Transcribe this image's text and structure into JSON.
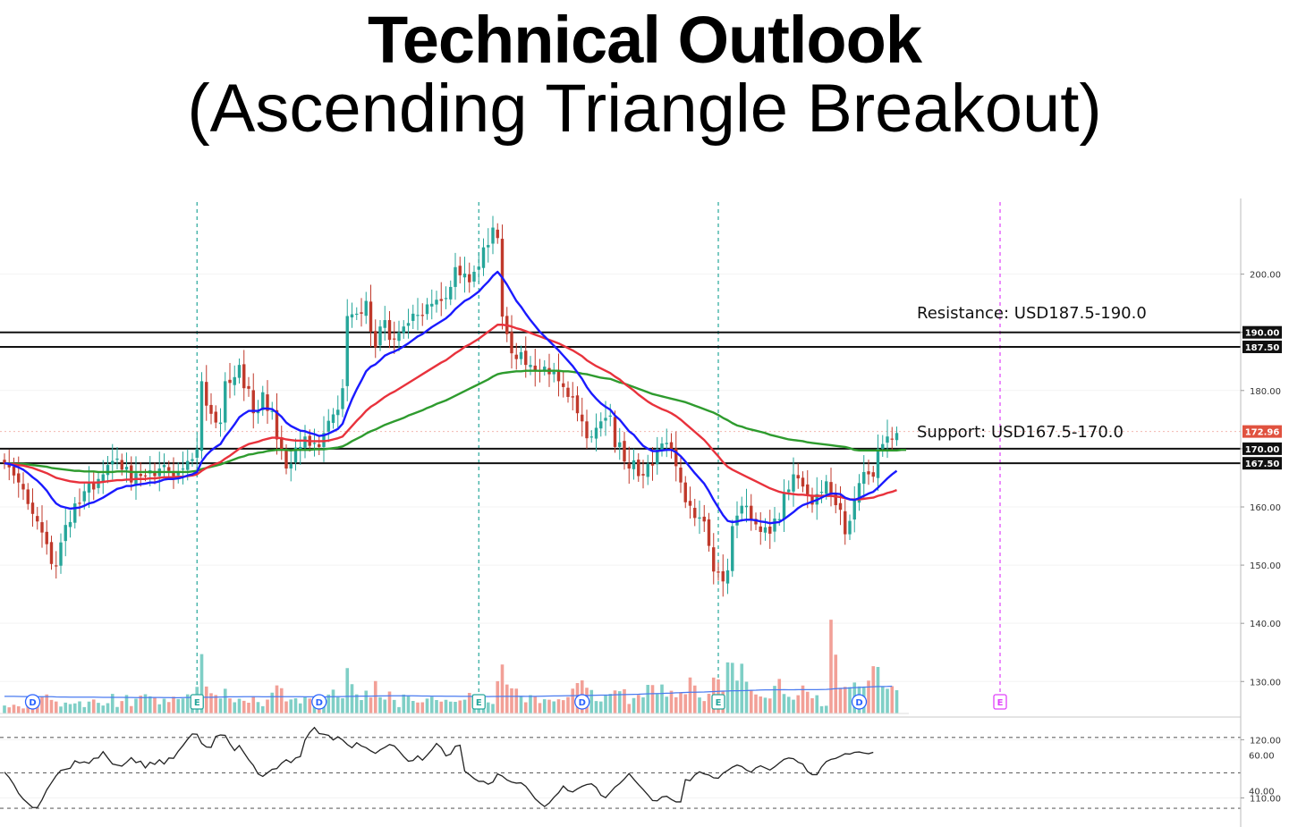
{
  "title": "Technical Outlook",
  "subtitle": "(Ascending Triangle Breakout)",
  "colors": {
    "up": "#26a69a",
    "down": "#c0392b",
    "ma_fast": "#1a1aff",
    "ma_mid": "#e8323c",
    "ma_slow": "#2e9b2e",
    "volume_ma": "#4a7bf0",
    "rsi": "#222222",
    "event_green": "#26a69a",
    "event_blue": "#2962ff",
    "event_magenta": "#e040fb",
    "last_price": "#e0523f"
  },
  "chart_data": {
    "type": "candlestick",
    "y_axis": {
      "ylim": [
        105,
        213
      ],
      "ticks": [
        110,
        120,
        130,
        140,
        150,
        160,
        170,
        180,
        190,
        200
      ],
      "tick_labels": [
        "110.00",
        "120.00",
        "130.00",
        "140.00",
        "150.00",
        "160.00",
        "170.00",
        "180.00",
        "190.00",
        "200.00"
      ]
    },
    "price_tags": [
      {
        "value": 190.0,
        "label": "190.00",
        "color": "#111111"
      },
      {
        "value": 187.5,
        "label": "187.50",
        "color": "#111111"
      },
      {
        "value": 172.96,
        "label": "172.96",
        "color": "#e0523f"
      },
      {
        "value": 170.0,
        "label": "170.00",
        "color": "#111111"
      },
      {
        "value": 167.5,
        "label": "167.50",
        "color": "#111111"
      }
    ],
    "horizontal_levels": [
      190.0,
      187.5,
      170.0,
      167.5
    ],
    "annotations": [
      {
        "text": "Resistance: USD187.5-190.0",
        "y": 193.3
      },
      {
        "text": "Support: USD167.5-170.0",
        "y": 172.9
      }
    ],
    "close": [
      167.5,
      166.8,
      165.4,
      164.2,
      163.0,
      160.5,
      158.8,
      157.5,
      155.6,
      153.6,
      150.2,
      149.9,
      153.9,
      156.9,
      157.4,
      160.6,
      160.6,
      162.7,
      164.1,
      163.0,
      164.8,
      165.6,
      167.2,
      167.9,
      168.3,
      166.4,
      166.9,
      164.2,
      165.8,
      165.3,
      165.4,
      166.3,
      165.3,
      166.6,
      167.2,
      166.2,
      165.3,
      166.1,
      166.6,
      167.9,
      168.2,
      170.0,
      181.6,
      177.4,
      176.0,
      174.5,
      174.5,
      181.6,
      181.3,
      182.3,
      184.4,
      180.4,
      180.3,
      176.1,
      176.4,
      179.7,
      176.5,
      176.5,
      171.6,
      169.9,
      166.6,
      167.4,
      170.2,
      170.3,
      172.1,
      170.5,
      171.0,
      170.3,
      172.7,
      174.8,
      175.9,
      176.7,
      180.4,
      192.8,
      193.1,
      193.2,
      193.2,
      195.4,
      190.1,
      187.4,
      191.0,
      192.1,
      188.7,
      188.9,
      190.0,
      191.0,
      191.6,
      193.2,
      193.0,
      192.9,
      194.8,
      194.9,
      195.6,
      195.4,
      195.9,
      197.8,
      201.2,
      199.8,
      200.1,
      198.6,
      200.4,
      201.3,
      204.6,
      205.0,
      208.0,
      206.2,
      192.7,
      189.7,
      186.4,
      185.4,
      186.6,
      184.4,
      184.4,
      183.3,
      183.2,
      184.1,
      182.8,
      183.2,
      181.6,
      180.6,
      178.9,
      178.8,
      176.1,
      174.7,
      171.8,
      172.1,
      173.6,
      174.7,
      175.3,
      175.7,
      170.3,
      171.1,
      167.8,
      166.6,
      168.0,
      165.3,
      165.4,
      167.4,
      167.1,
      170.0,
      170.9,
      171.0,
      169.7,
      167.0,
      164.2,
      160.8,
      160.2,
      158.1,
      158.2,
      157.5,
      153.3,
      148.9,
      148.7,
      147.2,
      149.1,
      156.7,
      158.5,
      160.2,
      160.2,
      157.7,
      157.0,
      155.7,
      156.5,
      155.4,
      158.0,
      157.9,
      162.3,
      163.0,
      165.6,
      164.9,
      163.5,
      162.0,
      160.4,
      162.2,
      162.6,
      164.4,
      162.3,
      160.3,
      159.5,
      155.3,
      157.6,
      161.1,
      164.1,
      166.0,
      165.6,
      165.2,
      170.0,
      170.8,
      172.1,
      171.6,
      172.7
    ],
    "ma_fast": [
      167.5,
      167.4,
      167.1,
      166.8,
      166.4,
      165.8,
      165.1,
      164.5,
      163.7,
      162.8,
      161.6,
      160.6,
      160.1,
      159.9,
      159.7,
      159.8,
      159.9,
      160.2,
      160.6,
      160.8,
      161.2,
      161.6,
      162.1,
      162.6,
      163.1,
      163.3,
      163.6,
      163.6,
      163.8,
      163.9,
      164.0,
      164.2,
      164.2,
      164.4,
      164.7,
      164.8,
      164.8,
      164.9,
      165.1,
      165.4,
      165.6,
      166.0,
      167.8,
      168.9,
      169.7,
      170.3,
      170.8,
      172.1,
      173.1,
      174.2,
      175.4,
      176.0,
      176.5,
      176.5,
      176.5,
      176.9,
      176.9,
      176.8,
      176.2,
      175.5,
      174.5,
      173.9,
      173.5,
      173.1,
      173.0,
      172.7,
      172.5,
      172.2,
      172.3,
      172.6,
      173.0,
      173.4,
      174.3,
      176.5,
      178.5,
      180.2,
      181.7,
      183.3,
      184.1,
      184.5,
      185.2,
      186.0,
      186.4,
      186.7,
      187.1,
      187.6,
      188.1,
      188.7,
      189.3,
      189.7,
      190.3,
      190.9,
      191.4,
      191.9,
      192.4,
      193.1,
      194.0,
      194.7,
      195.4,
      195.8,
      196.4,
      197.0,
      197.9,
      198.7,
      199.7,
      200.4,
      199.4,
      198.2,
      196.8,
      195.4,
      194.4,
      193.2,
      192.1,
      191.1,
      190.1,
      189.3,
      188.5,
      187.7,
      186.9,
      186.0,
      185.1,
      184.2,
      183.1,
      182.0,
      180.6,
      179.5,
      178.6,
      177.8,
      177.2,
      176.7,
      175.7,
      175.0,
      174.0,
      173.0,
      172.4,
      171.4,
      170.5,
      170.0,
      169.6,
      169.6,
      169.7,
      169.8,
      169.8,
      169.4,
      168.7,
      167.8,
      166.8,
      165.8,
      164.9,
      164.0,
      162.7,
      161.2,
      159.9,
      158.6,
      157.6,
      157.4,
      157.5,
      157.7,
      157.8,
      157.8,
      157.7,
      157.5,
      157.4,
      157.2,
      157.3,
      157.4,
      157.9,
      158.5,
      159.1,
      159.8,
      160.3,
      160.6,
      160.9,
      161.2,
      161.6,
      162.0,
      162.3,
      162.3,
      162.2,
      161.6,
      161.3,
      161.2,
      161.5,
      161.9,
      162.3,
      162.6,
      163.3,
      164.1,
      164.9,
      165.6,
      166.2
    ],
    "ma_mid": [
      167.5,
      167.4,
      167.3,
      167.2,
      167.1,
      166.9,
      166.7,
      166.4,
      166.1,
      165.8,
      165.4,
      165.0,
      164.8,
      164.6,
      164.4,
      164.3,
      164.2,
      164.2,
      164.2,
      164.2,
      164.2,
      164.3,
      164.4,
      164.5,
      164.6,
      164.6,
      164.7,
      164.7,
      164.8,
      164.8,
      164.8,
      164.9,
      164.9,
      165.0,
      165.1,
      165.1,
      165.1,
      165.2,
      165.2,
      165.3,
      165.4,
      165.6,
      166.2,
      166.7,
      167.1,
      167.4,
      167.7,
      168.3,
      168.8,
      169.4,
      170.0,
      170.4,
      170.8,
      171.0,
      171.2,
      171.5,
      171.7,
      171.9,
      171.9,
      171.8,
      171.6,
      171.5,
      171.4,
      171.4,
      171.4,
      171.3,
      171.3,
      171.3,
      171.3,
      171.4,
      171.6,
      171.8,
      172.1,
      173.0,
      173.9,
      174.8,
      175.6,
      176.5,
      177.2,
      177.7,
      178.3,
      178.9,
      179.4,
      179.8,
      180.3,
      180.8,
      181.3,
      181.8,
      182.3,
      182.8,
      183.3,
      183.8,
      184.3,
      184.8,
      185.2,
      185.8,
      186.4,
      186.9,
      187.5,
      187.9,
      188.4,
      188.9,
      189.5,
      190.1,
      190.7,
      191.3,
      191.3,
      191.2,
      191.0,
      190.7,
      190.5,
      190.2,
      189.9,
      189.6,
      189.3,
      189.0,
      188.7,
      188.4,
      188.1,
      187.7,
      187.3,
      186.9,
      186.4,
      185.9,
      185.2,
      184.7,
      184.2,
      183.8,
      183.4,
      183.0,
      182.4,
      181.9,
      181.2,
      180.6,
      180.0,
      179.3,
      178.7,
      178.1,
      177.6,
      177.2,
      176.8,
      176.5,
      176.1,
      175.6,
      175.0,
      174.3,
      173.6,
      172.9,
      172.2,
      171.5,
      170.6,
      169.6,
      168.7,
      167.7,
      166.9,
      166.4,
      166.0,
      165.6,
      165.2,
      164.8,
      164.4,
      164.0,
      163.6,
      163.2,
      162.9,
      162.6,
      162.4,
      162.3,
      162.2,
      162.1,
      162.1,
      162.0,
      161.9,
      161.9,
      161.9,
      161.9,
      161.9,
      161.8,
      161.7,
      161.5,
      161.3,
      161.3,
      161.3,
      161.4,
      161.5,
      161.6,
      161.9,
      162.1,
      162.4,
      162.6,
      162.9
    ],
    "ma_slow": [
      167.5,
      167.5,
      167.4,
      167.4,
      167.4,
      167.3,
      167.2,
      167.1,
      167.0,
      166.9,
      166.7,
      166.6,
      166.5,
      166.4,
      166.3,
      166.2,
      166.2,
      166.1,
      166.1,
      166.1,
      166.0,
      166.0,
      166.0,
      166.0,
      166.1,
      166.1,
      166.1,
      166.0,
      166.0,
      166.0,
      166.0,
      166.0,
      166.0,
      166.0,
      166.0,
      166.0,
      166.0,
      166.0,
      166.0,
      166.0,
      166.1,
      166.2,
      166.5,
      166.7,
      166.9,
      167.1,
      167.3,
      167.6,
      167.9,
      168.2,
      168.5,
      168.7,
      169.0,
      169.1,
      169.3,
      169.4,
      169.6,
      169.7,
      169.8,
      169.8,
      169.8,
      169.7,
      169.8,
      169.8,
      169.8,
      169.8,
      169.9,
      169.9,
      169.9,
      170.0,
      170.1,
      170.2,
      170.4,
      170.8,
      171.3,
      171.7,
      172.1,
      172.6,
      173.0,
      173.3,
      173.7,
      174.1,
      174.4,
      174.7,
      175.0,
      175.3,
      175.7,
      176.0,
      176.3,
      176.6,
      177.0,
      177.3,
      177.7,
      178.0,
      178.3,
      178.7,
      179.1,
      179.5,
      179.9,
      180.3,
      180.7,
      181.1,
      181.5,
      181.9,
      182.4,
      182.8,
      183.0,
      183.1,
      183.2,
      183.3,
      183.3,
      183.4,
      183.4,
      183.4,
      183.4,
      183.4,
      183.4,
      183.4,
      183.4,
      183.3,
      183.3,
      183.2,
      183.1,
      182.9,
      182.8,
      182.6,
      182.4,
      182.2,
      182.1,
      182.0,
      181.7,
      181.4,
      181.2,
      180.9,
      180.6,
      180.3,
      180.0,
      179.7,
      179.4,
      179.2,
      179.0,
      178.8,
      178.6,
      178.4,
      178.2,
      178.0,
      177.7,
      177.4,
      177.1,
      176.8,
      176.5,
      176.2,
      175.8,
      175.3,
      174.9,
      174.4,
      174.0,
      173.8,
      173.5,
      173.3,
      173.1,
      172.9,
      172.7,
      172.4,
      172.2,
      172.0,
      171.8,
      171.6,
      171.5,
      171.4,
      171.3,
      171.1,
      171.0,
      170.9,
      170.8,
      170.7,
      170.6,
      170.5,
      170.4,
      170.3,
      170.1,
      169.8,
      169.7,
      169.7,
      169.7,
      169.7,
      169.7,
      169.7,
      169.7,
      169.7,
      169.7,
      169.8,
      169.8
    ],
    "volume": [
      7.1,
      5.5,
      7.8,
      6.4,
      4.5,
      13.1,
      16.0,
      13.5,
      15.1,
      17.0,
      12.1,
      10.7,
      6.2,
      9.7,
      8.4,
      9.0,
      10.8,
      5.7,
      10.6,
      12.5,
      9.5,
      7.1,
      9.2,
      17.5,
      5.8,
      11.1,
      16.5,
      6.6,
      13.2,
      15.9,
      17.2,
      15.3,
      14.0,
      8.2,
      13.2,
      10.2,
      15.0,
      12.9,
      13.4,
      17.1,
      13.8,
      23.8,
      53.1,
      24.1,
      18.1,
      16.5,
      13.4,
      22.1,
      13.5,
      10.0,
      13.2,
      11.3,
      9.6,
      15.4,
      10.2,
      6.5,
      12.4,
      18.6,
      25.1,
      22.6,
      10.8,
      12.5,
      13.6,
      9.0,
      14.7,
      13.3,
      10.4,
      14.1,
      13.1,
      16.9,
      21.3,
      14.7,
      13.6,
      40.6,
      26.2,
      17.1,
      12.0,
      20.4,
      14.3,
      29.0,
      14.6,
      12.4,
      19.6,
      12.1,
      5.7,
      16.9,
      16.1,
      11.2,
      9.8,
      10.0,
      13.3,
      14.9,
      12.0,
      10.6,
      12.2,
      10.6,
      10.4,
      11.6,
      12.3,
      18.4,
      17.2,
      15.1,
      16.2,
      9.9,
      8.5,
      28.9,
      43.8,
      25.9,
      22.5,
      22.2,
      15.5,
      10.0,
      16.4,
      14.9,
      9.3,
      12.7,
      12.3,
      10.8,
      12.7,
      11.9,
      14.7,
      22.2,
      27.2,
      29.6,
      23.0,
      21.0,
      11.1,
      10.7,
      16.9,
      17.5,
      20.6,
      19.9,
      21.7,
      8.5,
      13.8,
      16.6,
      14.4,
      25.6,
      25.4,
      17.4,
      25.9,
      15.0,
      20.3,
      14.5,
      19.1,
      17.2,
      32.2,
      25.0,
      14.3,
      11.1,
      17.6,
      32.1,
      30.5,
      19.6,
      45.7,
      45.3,
      29.4,
      44.5,
      28.4,
      21.0,
      17.0,
      15.2,
      14.1,
      13.4,
      24.7,
      30.9,
      17.4,
      14.9,
      12.3,
      16.3,
      25.0,
      19.4,
      13.6,
      16.3,
      6.5,
      6.9,
      83.9,
      52.6,
      22.9,
      23.8,
      23.6,
      27.7,
      24.2,
      23.9,
      29.4,
      42.3,
      41.6,
      24.1,
      22.1,
      24.4,
      20.8
    ],
    "volume_ma": [
      15.3,
      15.3,
      15.3,
      15.2,
      15.1,
      15.1,
      15.0,
      15.0,
      15.0,
      15.0,
      15.0,
      14.8,
      14.7,
      14.7,
      14.6,
      14.6,
      14.6,
      14.6,
      14.6,
      14.6,
      14.5,
      14.4,
      14.4,
      14.4,
      14.4,
      14.4,
      14.3,
      14.3,
      14.2,
      14.2,
      14.2,
      14.3,
      14.3,
      14.3,
      14.2,
      14.2,
      14.1,
      14.1,
      14.2,
      14.3,
      14.3,
      14.3,
      14.5,
      14.5,
      14.5,
      14.6,
      14.7,
      14.8,
      14.9,
      14.9,
      14.9,
      15.0,
      15.0,
      15.0,
      15.0,
      14.9,
      14.9,
      15.0,
      15.0,
      15.0,
      15.0,
      15.0,
      15.0,
      15.0,
      14.9,
      14.9,
      14.9,
      14.9,
      14.8,
      14.9,
      15.0,
      15.1,
      15.1,
      15.3,
      15.3,
      15.4,
      15.5,
      15.5,
      15.5,
      15.6,
      15.7,
      15.7,
      15.8,
      15.8,
      15.8,
      15.8,
      15.8,
      15.8,
      15.7,
      15.6,
      15.6,
      15.5,
      15.5,
      15.5,
      15.4,
      15.4,
      15.4,
      15.3,
      15.3,
      15.3,
      15.2,
      15.2,
      15.2,
      15.1,
      15.2,
      15.2,
      15.3,
      15.3,
      15.3,
      15.3,
      15.4,
      15.3,
      15.3,
      15.3,
      15.4,
      15.5,
      15.6,
      15.7,
      15.7,
      15.8,
      15.9,
      15.9,
      16.0,
      16.1,
      16.1,
      16.2,
      16.3,
      16.4,
      16.4,
      16.5,
      16.7,
      16.8,
      16.9,
      17.0,
      17.1,
      17.2,
      17.4,
      17.6,
      17.7,
      17.8,
      17.9,
      18.1,
      18.2,
      18.5,
      18.6,
      18.8,
      19.0,
      19.0,
      19.1,
      19.2,
      19.4,
      19.6,
      19.8,
      20.0,
      20.1,
      20.3,
      20.3,
      20.4,
      20.5,
      20.7,
      20.8,
      21.0,
      21.1,
      21.1,
      21.2,
      21.2,
      21.3,
      21.2,
      21.2,
      21.3,
      21.3,
      21.3,
      21.3,
      21.3,
      21.4,
      21.5,
      21.8,
      22.2,
      22.4,
      22.6,
      22.8,
      23.1,
      23.3,
      23.6,
      23.7,
      23.9,
      24.1,
      24.1,
      24.2,
      24.4
    ],
    "rsi": [
      50.4,
      47.4,
      43.4,
      38.4,
      35.2,
      32.8,
      30.4,
      30.4,
      34.8,
      40.4,
      44.4,
      48.4,
      51.4,
      52.0,
      52.6,
      56.8,
      55.6,
      56.2,
      55.4,
      58.2,
      58.4,
      62.0,
      58.4,
      55.0,
      54.4,
      53.8,
      56.0,
      58.6,
      55.8,
      56.6,
      52.8,
      56.0,
      54.8,
      57.4,
      55.0,
      58.4,
      58.2,
      62.2,
      65.4,
      69.0,
      72.0,
      71.8,
      66.6,
      64.6,
      64.4,
      70.6,
      71.4,
      71.2,
      66.4,
      62.6,
      65.4,
      61.4,
      57.4,
      54.2,
      49.4,
      48.0,
      50.0,
      52.0,
      52.4,
      55.4,
      57.4,
      55.8,
      58.4,
      59.2,
      68.6,
      72.8,
      75.6,
      72.2,
      71.8,
      71.2,
      68.6,
      70.4,
      68.6,
      66.0,
      64.2,
      67.0,
      65.2,
      64.2,
      62.4,
      61.0,
      63.0,
      64.4,
      66.0,
      65.2,
      62.4,
      59.2,
      56.6,
      57.0,
      59.6,
      57.2,
      60.0,
      63.0,
      66.6,
      64.2,
      59.6,
      60.6,
      65.0,
      65.6,
      51.0,
      49.0,
      46.8,
      45.2,
      45.2,
      43.6,
      44.8,
      49.4,
      48.2,
      46.0,
      44.8,
      44.2,
      44.4,
      42.4,
      39.0,
      35.4,
      33.0,
      31.0,
      33.0,
      36.2,
      38.8,
      42.6,
      40.0,
      39.2,
      41.0,
      42.4,
      43.4,
      43.8,
      41.8,
      37.4,
      36.0,
      39.0,
      42.0,
      44.0,
      46.6,
      49.6,
      46.4,
      43.4,
      40.6,
      37.6,
      34.4,
      34.2,
      36.4,
      36.8,
      35.0,
      33.6,
      33.6,
      46.2,
      45.6,
      48.8,
      50.6,
      49.4,
      48.8,
      47.2,
      47.0,
      49.8,
      51.4,
      53.2,
      54.4,
      53.6,
      51.6,
      50.4,
      52.8,
      54.0,
      52.8,
      51.6,
      53.4,
      55.6,
      57.6,
      58.4,
      58.0,
      56.0,
      55.0,
      50.8,
      49.0,
      49.0,
      53.4,
      56.4,
      57.6,
      58.2,
      59.4,
      60.8,
      60.6,
      61.6,
      61.8,
      61.2,
      60.8,
      61.6
    ],
    "rsi_axis": {
      "ylim": [
        26,
        79
      ],
      "levels": [
        30,
        50,
        70
      ],
      "tick_labels": [
        "40.00",
        "60.00"
      ],
      "ticks": [
        40,
        60
      ]
    },
    "event_markers": [
      {
        "letter": "D",
        "bar": 6,
        "kind": "dividend"
      },
      {
        "letter": "E",
        "bar": 41,
        "kind": "earnings"
      },
      {
        "letter": "D",
        "bar": 67,
        "kind": "dividend"
      },
      {
        "letter": "E",
        "bar": 101,
        "kind": "earnings"
      },
      {
        "letter": "D",
        "bar": 123,
        "kind": "dividend"
      },
      {
        "letter": "E",
        "bar": 152,
        "kind": "earnings"
      },
      {
        "letter": "D",
        "bar": 182,
        "kind": "dividend"
      },
      {
        "letter": "E",
        "bar": 212,
        "kind": "earnings-upcoming"
      }
    ],
    "vertical_lines": [
      41,
      101,
      152,
      212
    ]
  }
}
